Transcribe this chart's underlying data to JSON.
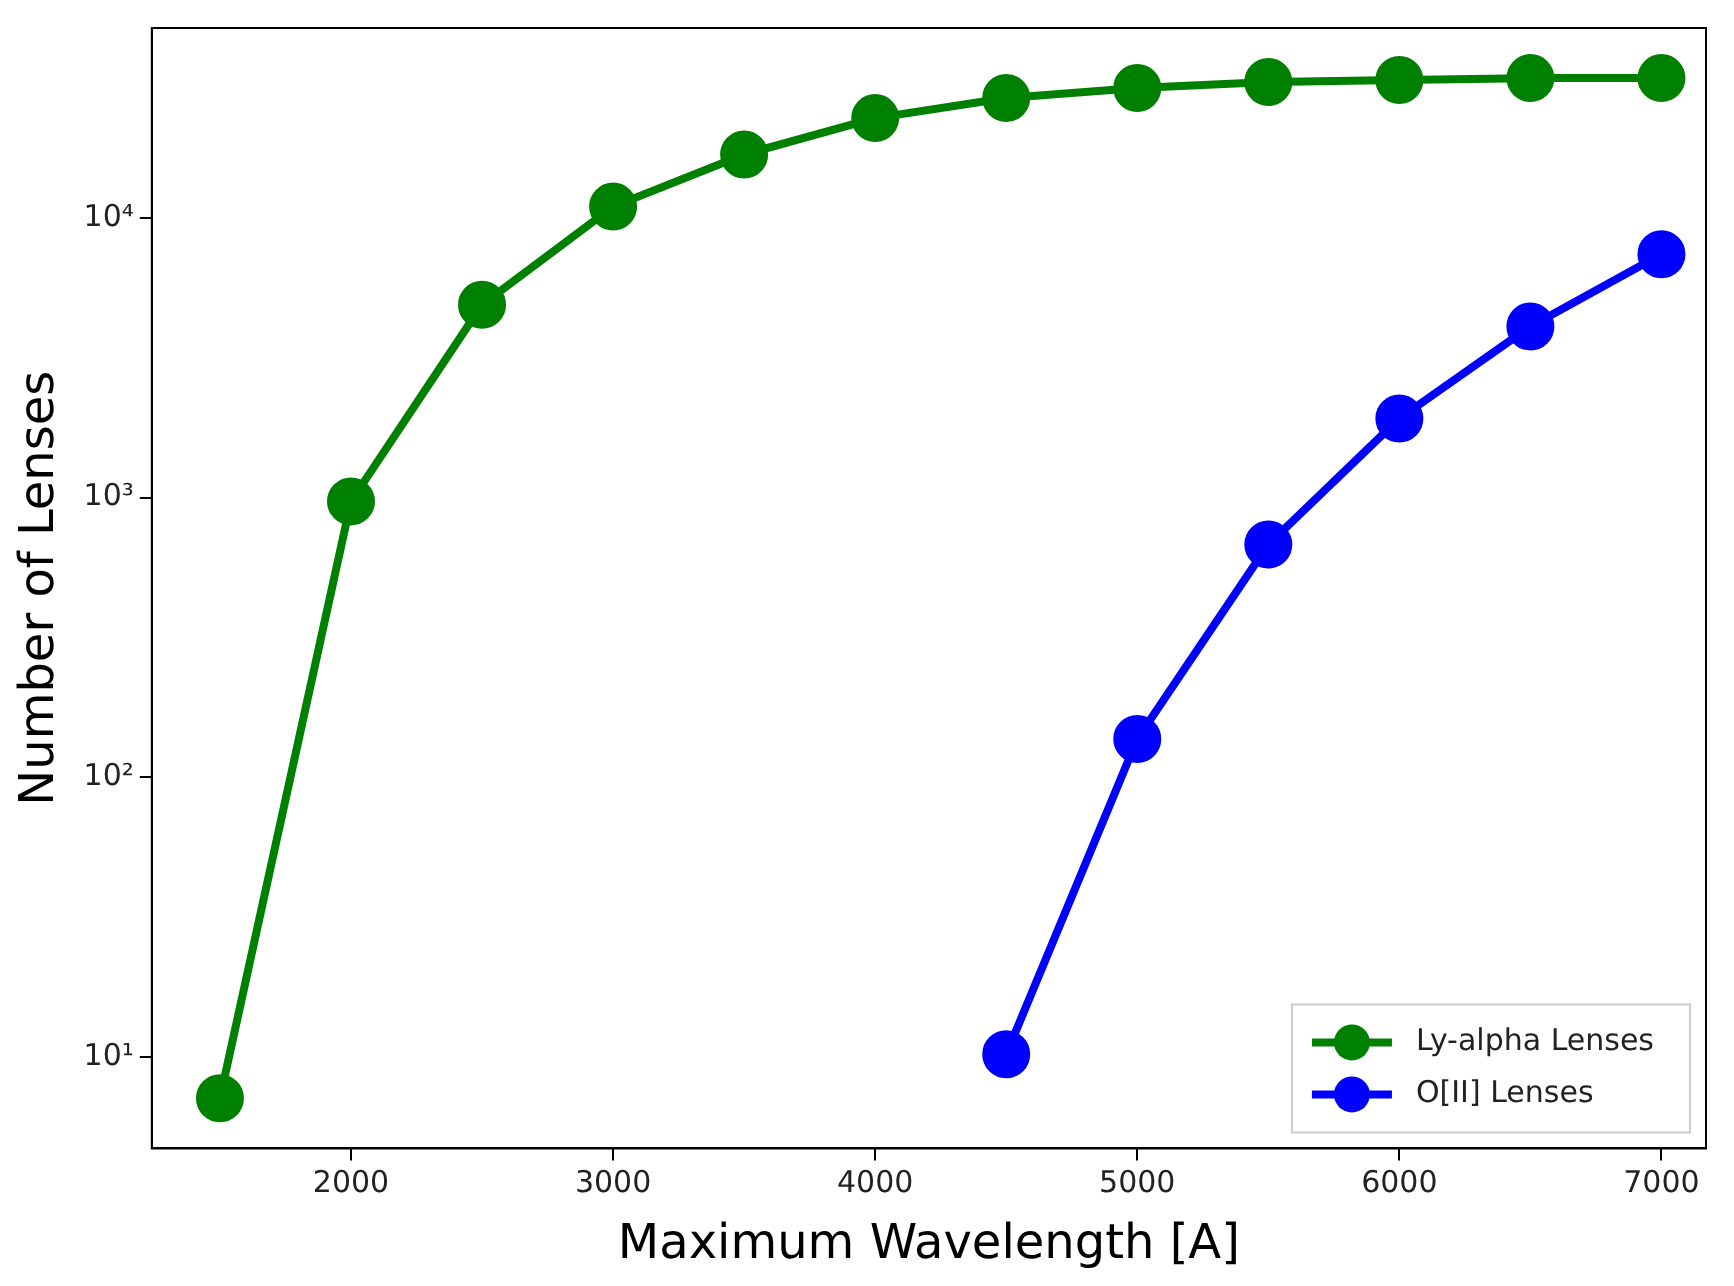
{
  "chart_data": {
    "type": "line",
    "xlabel": "Maximum Wavelength [A]",
    "ylabel": "Number of Lenses",
    "log": "y",
    "grid": false,
    "legend": "bottom right",
    "marker": "circle",
    "line_style": "solid",
    "xlim": [
      1240,
      7170
    ],
    "xticks": [
      2000,
      3000,
      4000,
      5000,
      6000,
      7000
    ],
    "ylim": [
      4.7,
      47900
    ],
    "yticks": [
      {
        "value": 10,
        "label": "10¹"
      },
      {
        "value": 100,
        "label": "10²"
      },
      {
        "value": 1000,
        "label": "10³"
      },
      {
        "value": 10000,
        "label": "10⁴"
      }
    ],
    "series": [
      {
        "name": "Ly-alpha Lenses",
        "color": "#008000",
        "x": [
          1500,
          2000,
          2500,
          3000,
          3500,
          4000,
          4500,
          5000,
          5500,
          6000,
          6500,
          7000
        ],
        "values": [
          7.1,
          970,
          4900,
          11000,
          16900,
          22800,
          26900,
          29200,
          30700,
          31200,
          31700,
          31700
        ]
      },
      {
        "name": "O[II] Lenses",
        "color": "#0000ff",
        "x": [
          4500,
          5000,
          5500,
          6000,
          6500,
          7000
        ],
        "values": [
          10.2,
          137,
          680,
          1920,
          4100,
          7430
        ]
      }
    ]
  }
}
